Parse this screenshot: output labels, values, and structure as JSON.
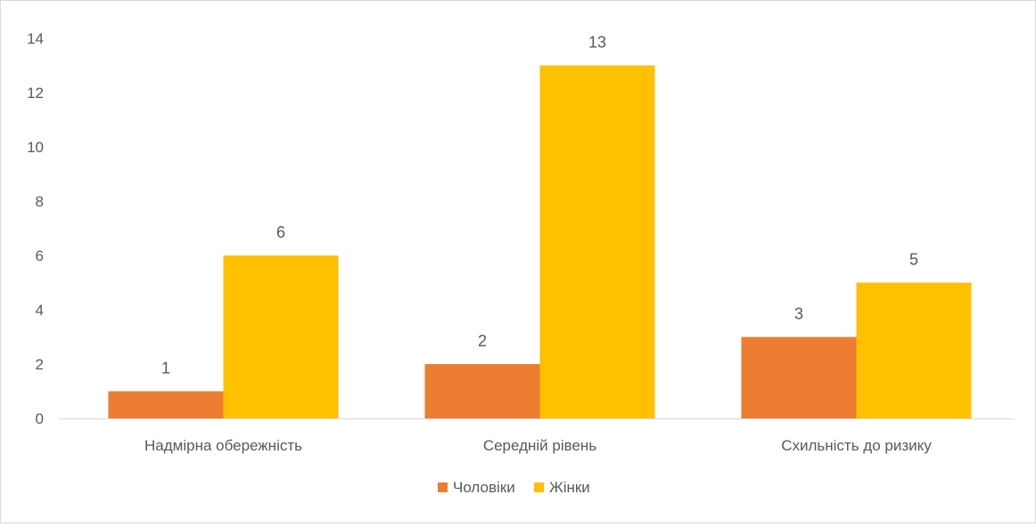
{
  "chart_data": {
    "type": "bar",
    "title": "",
    "xlabel": "",
    "ylabel": "",
    "categories": [
      "Надмірна обережність",
      "Середній рівень",
      "Схильність до ризику"
    ],
    "series": [
      {
        "name": "Чоловіки",
        "color": "#ED7D31",
        "values": [
          1,
          2,
          3
        ]
      },
      {
        "name": "Жінки",
        "color": "#FFC000",
        "values": [
          6,
          13,
          5
        ]
      }
    ],
    "ylim": [
      0,
      14
    ],
    "yticks": [
      0,
      2,
      4,
      6,
      8,
      10,
      12,
      14
    ],
    "data_labels": true,
    "grid": false,
    "legend": "bottom",
    "axis_color": "#d9d9d9",
    "text_color": "#595959"
  }
}
